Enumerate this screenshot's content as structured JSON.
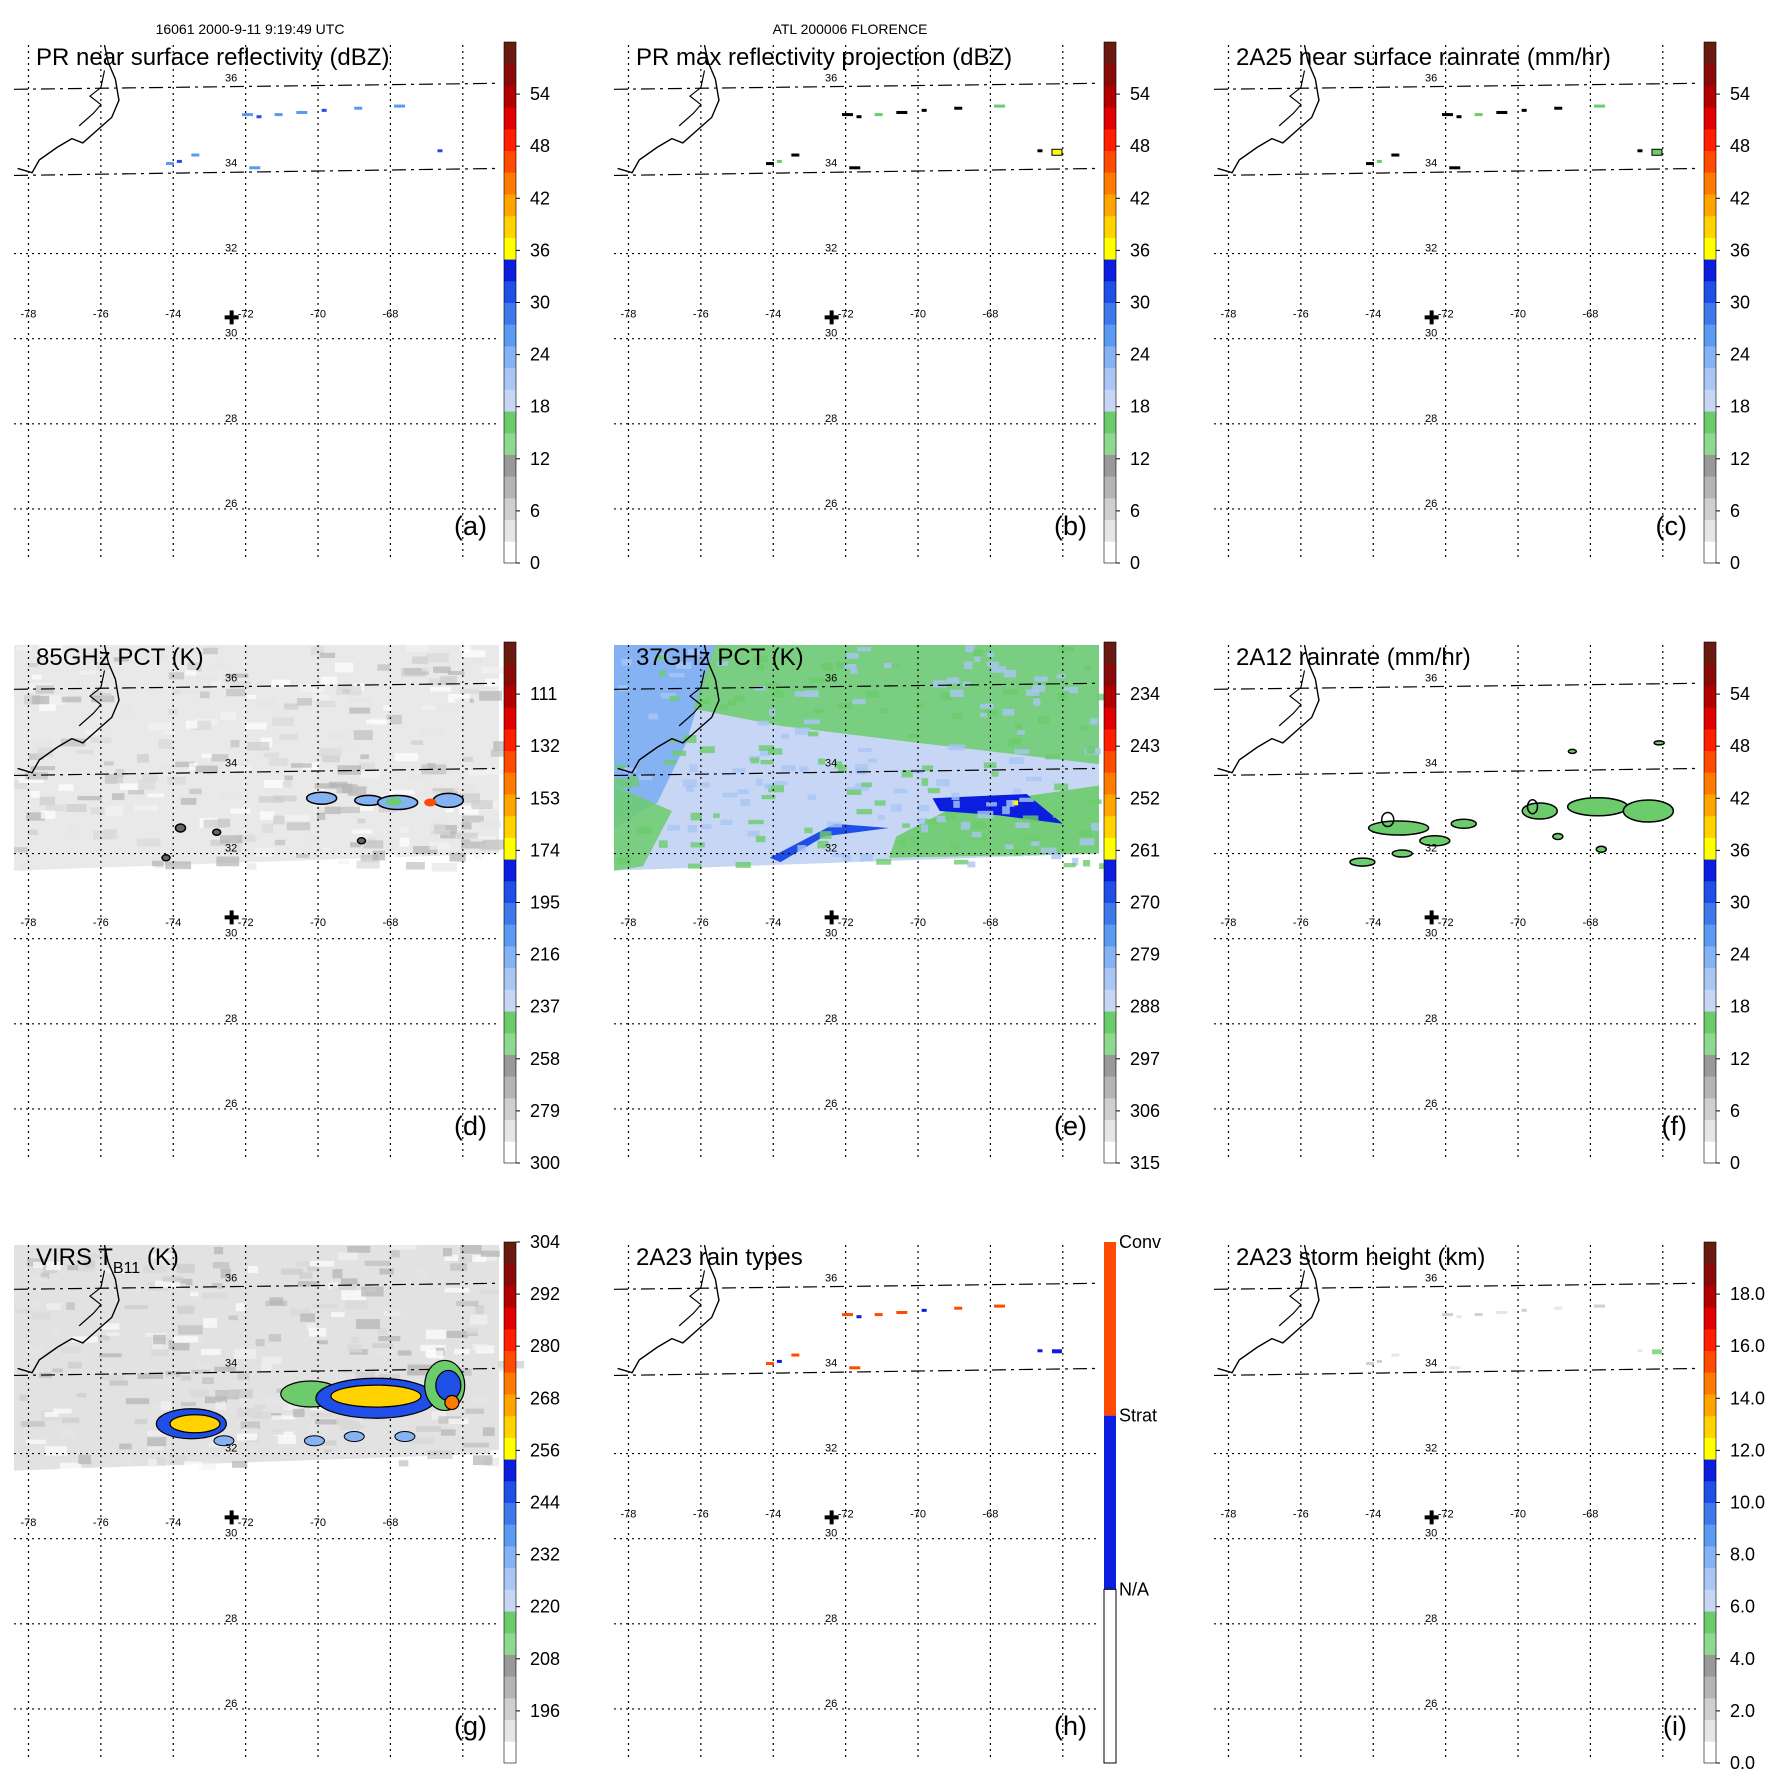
{
  "header": {
    "left": "16061 2000-9-11 9:19:49 UTC",
    "center": "ATL 200006 FLORENCE"
  },
  "colors": {
    "grid": "#000000",
    "ramp_dbz": [
      "#ffffff",
      "#e6e6e6",
      "#cfcfcf",
      "#b4b4b4",
      "#999999",
      "#8fd88f",
      "#6ccc6c",
      "#c8d6f5",
      "#a9c6f5",
      "#84b2f3",
      "#5a9af0",
      "#3e78ea",
      "#1f4fe6",
      "#0b1ee0",
      "#ffff00",
      "#ffd200",
      "#ffa500",
      "#ff7a00",
      "#ff4b00",
      "#ff1e00",
      "#e00000",
      "#b00000",
      "#8a0a0a",
      "#6a1a10"
    ],
    "rain_types": {
      "na": "#ffffff",
      "strat": "#0b1ee0",
      "conv": "#ff4b00"
    }
  },
  "chart_data": [
    {
      "id": "a",
      "type": "heatmap",
      "title": "PR near surface reflectivity (dBZ)",
      "panel_label": "(a)",
      "colorbar": {
        "min": 0,
        "max": 60,
        "ticks": [
          "54",
          "48",
          "42",
          "36",
          "30",
          "24",
          "18",
          "12",
          "6",
          "0"
        ],
        "tick_values": [
          54,
          48,
          42,
          36,
          30,
          24,
          18,
          12,
          6,
          0
        ]
      },
      "lon_ticks": [
        "-78",
        "-76",
        "-74",
        "-72",
        "-70",
        "-68"
      ],
      "lat_ticks": [
        "36",
        "34",
        "32",
        "30",
        "28",
        "26"
      ],
      "swath": "pr",
      "storm_center": {
        "lon": -72.0,
        "lat": 30.5
      }
    },
    {
      "id": "b",
      "type": "heatmap",
      "title": "PR max reflectivity projection (dBZ)",
      "panel_label": "(b)",
      "colorbar": {
        "min": 0,
        "max": 60,
        "ticks": [
          "54",
          "48",
          "42",
          "36",
          "30",
          "24",
          "18",
          "12",
          "6",
          "0"
        ],
        "tick_values": [
          54,
          48,
          42,
          36,
          30,
          24,
          18,
          12,
          6,
          0
        ]
      },
      "lon_ticks": [
        "-78",
        "-76",
        "-74",
        "-72",
        "-70",
        "-68"
      ],
      "lat_ticks": [
        "36",
        "34",
        "32",
        "30",
        "28",
        "26"
      ],
      "swath": "pr",
      "storm_center": {
        "lon": -72.0,
        "lat": 30.5
      }
    },
    {
      "id": "c",
      "type": "heatmap",
      "title": "2A25 near surface rainrate (mm/hr)",
      "panel_label": "(c)",
      "colorbar": {
        "min": 0,
        "max": 60,
        "ticks": [
          "54",
          "48",
          "42",
          "36",
          "30",
          "24",
          "18",
          "12",
          "6",
          "0"
        ],
        "tick_values": [
          54,
          48,
          42,
          36,
          30,
          24,
          18,
          12,
          6,
          0
        ]
      },
      "lon_ticks": [
        "-78",
        "-76",
        "-74",
        "-72",
        "-70",
        "-68"
      ],
      "lat_ticks": [
        "36",
        "34",
        "32",
        "30",
        "28",
        "26"
      ],
      "swath": "pr",
      "storm_center": {
        "lon": -72.0,
        "lat": 30.5
      }
    },
    {
      "id": "d",
      "type": "heatmap",
      "title": "85GHz PCT (K)",
      "panel_label": "(d)",
      "colorbar": {
        "min": 90,
        "max": 300,
        "ticks": [
          "111",
          "132",
          "153",
          "174",
          "195",
          "216",
          "237",
          "258",
          "279",
          "300"
        ],
        "tick_values": [
          111,
          132,
          153,
          174,
          195,
          216,
          237,
          258,
          279,
          300
        ]
      },
      "lon_ticks": [
        "-78",
        "-76",
        "-74",
        "-72",
        "-70",
        "-68"
      ],
      "lat_ticks": [
        "36",
        "34",
        "32",
        "30",
        "28",
        "26"
      ],
      "swath": "tmi",
      "storm_center": {
        "lon": -72.0,
        "lat": 30.5
      }
    },
    {
      "id": "e",
      "type": "heatmap",
      "title": "37GHz PCT (K)",
      "panel_label": "(e)",
      "colorbar": {
        "min": 225,
        "max": 315,
        "ticks": [
          "234",
          "243",
          "252",
          "261",
          "270",
          "279",
          "288",
          "297",
          "306",
          "315"
        ],
        "tick_values": [
          234,
          243,
          252,
          261,
          270,
          279,
          288,
          297,
          306,
          315
        ]
      },
      "lon_ticks": [
        "-78",
        "-76",
        "-74",
        "-72",
        "-70",
        "-68"
      ],
      "lat_ticks": [
        "36",
        "34",
        "32",
        "30",
        "28",
        "26"
      ],
      "swath": "tmi",
      "storm_center": {
        "lon": -72.0,
        "lat": 30.5
      }
    },
    {
      "id": "f",
      "type": "heatmap",
      "title": "2A12 rainrate (mm/hr)",
      "panel_label": "(f)",
      "colorbar": {
        "min": 0,
        "max": 60,
        "ticks": [
          "54",
          "48",
          "42",
          "36",
          "30",
          "24",
          "18",
          "12",
          "6",
          "0"
        ],
        "tick_values": [
          54,
          48,
          42,
          36,
          30,
          24,
          18,
          12,
          6,
          0
        ]
      },
      "lon_ticks": [
        "-78",
        "-76",
        "-74",
        "-72",
        "-70",
        "-68"
      ],
      "lat_ticks": [
        "36",
        "34",
        "32",
        "30",
        "28",
        "26"
      ],
      "swath": "tmi",
      "storm_center": {
        "lon": -72.0,
        "lat": 30.5
      }
    },
    {
      "id": "g",
      "type": "heatmap",
      "title": "VIRS T",
      "title_sub": "B11",
      "title_tail": " (K)",
      "panel_label": "(g)",
      "colorbar": {
        "min": 184,
        "max": 304,
        "ticks": [
          "196",
          "208",
          "220",
          "232",
          "244",
          "256",
          "268",
          "280",
          "292",
          "304"
        ],
        "tick_values": [
          196,
          208,
          220,
          232,
          244,
          256,
          268,
          280,
          292,
          304
        ]
      },
      "lon_ticks": [
        "-78",
        "-76",
        "-74",
        "-72",
        "-70",
        "-68"
      ],
      "lat_ticks": [
        "36",
        "34",
        "32",
        "30",
        "28",
        "26"
      ],
      "swath": "tmi",
      "storm_center": {
        "lon": -72.0,
        "lat": 30.5
      }
    },
    {
      "id": "h",
      "type": "heatmap",
      "title": "2A23 rain types",
      "panel_label": "(h)",
      "colorbar": {
        "categorical": true,
        "ticks": [
          "Conv",
          "Strat",
          "N/A"
        ]
      },
      "lon_ticks": [
        "-78",
        "-76",
        "-74",
        "-72",
        "-70",
        "-68"
      ],
      "lat_ticks": [
        "36",
        "34",
        "32",
        "30",
        "28",
        "26"
      ],
      "swath": "pr",
      "storm_center": {
        "lon": -72.0,
        "lat": 30.5
      }
    },
    {
      "id": "i",
      "type": "heatmap",
      "title": "2A23 storm height (km)",
      "panel_label": "(i)",
      "colorbar": {
        "min": 0,
        "max": 20,
        "ticks": [
          "18.0",
          "16.0",
          "14.0",
          "12.0",
          "10.0",
          "8.0",
          "6.0",
          "4.0",
          "2.0",
          "0.0"
        ],
        "tick_values": [
          18,
          16,
          14,
          12,
          10,
          8,
          6,
          4,
          2,
          0
        ]
      },
      "lon_ticks": [
        "-78",
        "-76",
        "-74",
        "-72",
        "-70",
        "-68"
      ],
      "lat_ticks": [
        "36",
        "34",
        "32",
        "30",
        "28",
        "26"
      ],
      "swath": "pr",
      "storm_center": {
        "lon": -72.0,
        "lat": 30.5
      }
    }
  ]
}
